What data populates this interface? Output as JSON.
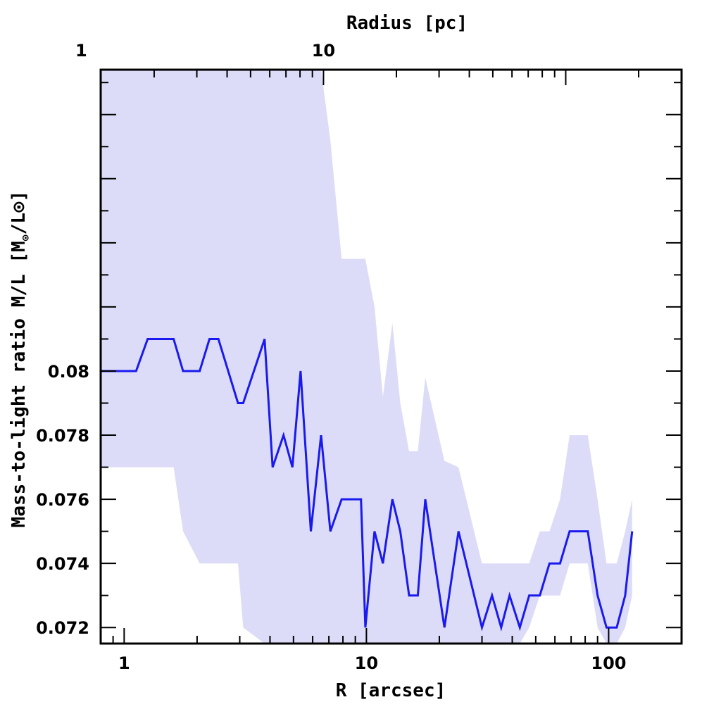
{
  "chart_data": {
    "type": "line",
    "xscale": "log",
    "xlabel": "R [arcsec]",
    "ylabel_text": "Mass-to-light ratio M/L [M",
    "ylabel_sun": "⊙",
    "ylabel_tail": "/L⊙]",
    "top_axis_label": "Radius [pc]",
    "xlim": [
      0.8,
      200
    ],
    "ylim": [
      0.0715,
      0.0894
    ],
    "x_ticks": [
      {
        "value": 1,
        "label": "1"
      },
      {
        "value": 10,
        "label": "10"
      },
      {
        "value": 100,
        "label": "100"
      }
    ],
    "y_ticks": [
      {
        "value": 0.072,
        "label": "0.072"
      },
      {
        "value": 0.074,
        "label": "0.074"
      },
      {
        "value": 0.076,
        "label": "0.076"
      },
      {
        "value": 0.078,
        "label": "0.078"
      },
      {
        "value": 0.08,
        "label": "0.08"
      }
    ],
    "top_ticks": [
      {
        "value": 1,
        "label": "1"
      },
      {
        "value": 10,
        "label": "10"
      }
    ],
    "top_axis_scale_arcsec_per_pc": 0.665,
    "colors": {
      "line": "#1a1aee",
      "band": "#dcdcf8",
      "axis": "#000000"
    },
    "series": [
      {
        "x": [
          0.8,
          1.12,
          1.25,
          1.6,
          1.75,
          2.05,
          2.25,
          2.45,
          2.95,
          3.1,
          3.8,
          4.1,
          4.55,
          4.95,
          5.35,
          5.9,
          6.5,
          7.1,
          7.9,
          9.5,
          9.9,
          10.8,
          11.7,
          12.8,
          13.8,
          15.0,
          16.3,
          17.5,
          21.0,
          24.0,
          30.0,
          33.0,
          36.0,
          39.0,
          43.0,
          47.0,
          52.0,
          57.0,
          63.0,
          69.0,
          82.0,
          90.0,
          98.0,
          108.0,
          117.0,
          125.0
        ],
        "y": [
          0.08,
          0.08,
          0.081,
          0.081,
          0.08,
          0.08,
          0.081,
          0.081,
          0.079,
          0.079,
          0.081,
          0.077,
          0.078,
          0.077,
          0.08,
          0.075,
          0.078,
          0.075,
          0.076,
          0.076,
          0.072,
          0.075,
          0.074,
          0.076,
          0.075,
          0.073,
          0.073,
          0.076,
          0.072,
          0.075,
          0.072,
          0.073,
          0.072,
          0.073,
          0.072,
          0.073,
          0.073,
          0.074,
          0.074,
          0.075,
          0.075,
          0.073,
          0.072,
          0.072,
          0.073,
          0.075
        ],
        "y_upper": [
          0.0894,
          0.0894,
          0.0894,
          0.0894,
          0.0894,
          0.0894,
          0.0894,
          0.0894,
          0.0894,
          0.0894,
          0.0894,
          0.0894,
          0.0894,
          0.0894,
          0.0894,
          0.0894,
          0.0894,
          0.0872,
          0.0835,
          0.0835,
          0.0835,
          0.082,
          0.0792,
          0.0815,
          0.079,
          0.0775,
          0.0775,
          0.0798,
          0.0772,
          0.077,
          0.074,
          0.074,
          0.074,
          0.074,
          0.074,
          0.074,
          0.075,
          0.075,
          0.076,
          0.078,
          0.078,
          0.076,
          0.074,
          0.074,
          0.075,
          0.076
        ],
        "y_lower": [
          0.077,
          0.077,
          0.077,
          0.077,
          0.075,
          0.074,
          0.074,
          0.074,
          0.074,
          0.072,
          0.0715,
          0.0715,
          0.0715,
          0.0715,
          0.0715,
          0.0715,
          0.0715,
          0.0715,
          0.0715,
          0.0715,
          0.0715,
          0.0715,
          0.0715,
          0.0715,
          0.0715,
          0.0715,
          0.0715,
          0.0715,
          0.0715,
          0.0715,
          0.0715,
          0.0715,
          0.0715,
          0.0715,
          0.0715,
          0.072,
          0.073,
          0.073,
          0.073,
          0.074,
          0.074,
          0.072,
          0.0715,
          0.0715,
          0.072,
          0.073
        ]
      }
    ]
  }
}
